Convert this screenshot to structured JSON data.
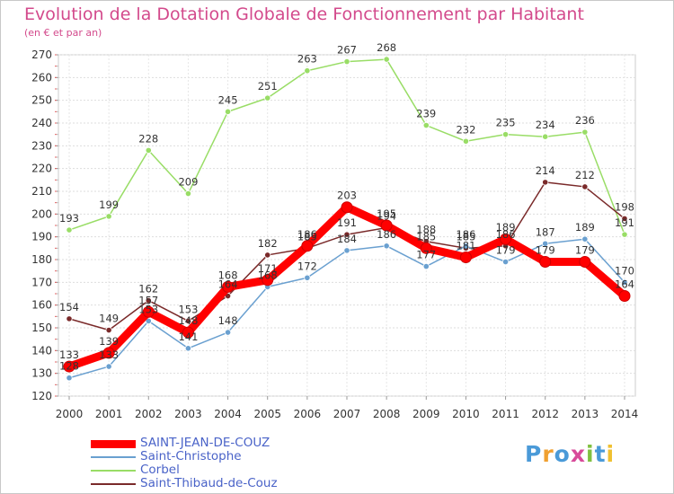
{
  "chart_data": {
    "type": "line",
    "title": "Evolution de la Dotation Globale de Fonctionnement par Habitant",
    "subtitle": "(en € et par an)",
    "xlabel": "",
    "ylabel": "",
    "x": [
      "2000",
      "2001",
      "2002",
      "2003",
      "2004",
      "2005",
      "2006",
      "2007",
      "2008",
      "2009",
      "2010",
      "2011",
      "2012",
      "2013",
      "2014"
    ],
    "ylim": [
      120,
      270
    ],
    "yticks": [
      "120",
      "130",
      "140",
      "150",
      "160",
      "170",
      "180",
      "190",
      "200",
      "210",
      "220",
      "230",
      "240",
      "250",
      "260",
      "270"
    ],
    "grid": true,
    "legend_position": "bottom-left",
    "series": [
      {
        "name": "SAINT-JEAN-DE-COUZ",
        "color": "#ff0000",
        "values": [
          133,
          139,
          157,
          148,
          168,
          171,
          186,
          203,
          195,
          185,
          181,
          189,
          179,
          179,
          164
        ],
        "labels": [
          "133",
          "139",
          "157",
          "148",
          "168",
          "171",
          "186",
          "203",
          "195",
          "185",
          "181",
          "189",
          "179",
          "179",
          "164"
        ]
      },
      {
        "name": "Saint-Christophe",
        "color": "#6aa0d0",
        "values": [
          128,
          133,
          153,
          141,
          148,
          168,
          172,
          184,
          186,
          177,
          186,
          179,
          187,
          189,
          170
        ],
        "labels": [
          "128",
          "133",
          "153",
          "141",
          "148",
          "168",
          "172",
          "184",
          "186",
          "177",
          "186",
          "179",
          "187",
          "189",
          "170"
        ]
      },
      {
        "name": "Corbel",
        "color": "#99dd66",
        "values": [
          193,
          199,
          228,
          209,
          245,
          251,
          263,
          267,
          268,
          239,
          232,
          235,
          234,
          236,
          191
        ],
        "labels": [
          "193",
          "199",
          "228",
          "209",
          "245",
          "251",
          "263",
          "267",
          "268",
          "239",
          "232",
          "235",
          "234",
          "236",
          "191"
        ]
      },
      {
        "name": "Saint-Thibaud-de-Couz",
        "color": "#7a2a2a",
        "values": [
          154,
          149,
          162,
          153,
          164,
          182,
          185,
          191,
          194,
          188,
          185,
          186,
          214,
          212,
          198
        ],
        "labels": [
          "154",
          "149",
          "162",
          "153",
          "164",
          "182",
          "185",
          "191",
          "194",
          "188",
          "185",
          "186",
          "214",
          "212",
          "198"
        ]
      }
    ]
  },
  "logo": {
    "letters": [
      "P",
      "r",
      "o",
      "x",
      "i",
      "t",
      "i"
    ],
    "colors": [
      "#4a9ad8",
      "#f0a030",
      "#4a9ad8",
      "#d84a9a",
      "#80c040",
      "#4a9ad8",
      "#f0c030"
    ]
  }
}
